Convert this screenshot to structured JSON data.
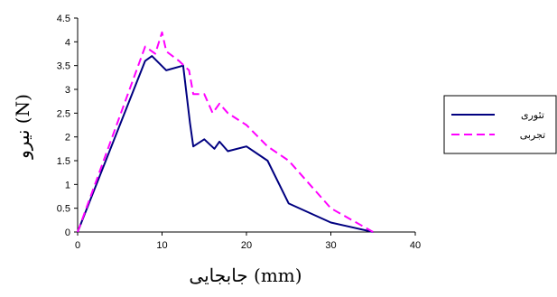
{
  "chart_data": {
    "type": "line",
    "title": "",
    "xlabel": "جابجایی (mm)",
    "ylabel": "نیرو (N)",
    "xlim": [
      0,
      40
    ],
    "ylim": [
      0,
      4.5
    ],
    "xticks": [
      0,
      10,
      20,
      30,
      40
    ],
    "yticks": [
      0,
      0.5,
      1,
      1.5,
      2,
      2.5,
      3,
      3.5,
      4,
      4.5
    ],
    "grid": false,
    "legend_position": "right",
    "series": [
      {
        "name": "تئوری",
        "color": "#000080",
        "dash": "solid",
        "x": [
          0,
          8,
          8.8,
          10.5,
          12.5,
          13.3,
          13.7,
          15,
          16.2,
          16.8,
          17.8,
          20,
          22.5,
          25,
          30,
          35
        ],
        "y": [
          0,
          3.6,
          3.7,
          3.4,
          3.5,
          2.3,
          1.8,
          1.95,
          1.75,
          1.9,
          1.7,
          1.8,
          1.5,
          0.6,
          0.2,
          0
        ]
      },
      {
        "name": "تجربی",
        "color": "#FF00FF",
        "dash": "dashed",
        "x": [
          0,
          8,
          9.2,
          10,
          10.5,
          12,
          13.2,
          13.7,
          15,
          16,
          16.8,
          17.8,
          20,
          22.5,
          25,
          30,
          35
        ],
        "y": [
          0,
          3.9,
          3.75,
          4.2,
          3.8,
          3.6,
          3.4,
          2.9,
          2.9,
          2.5,
          2.7,
          2.5,
          2.25,
          1.8,
          1.5,
          0.5,
          0
        ]
      }
    ]
  }
}
